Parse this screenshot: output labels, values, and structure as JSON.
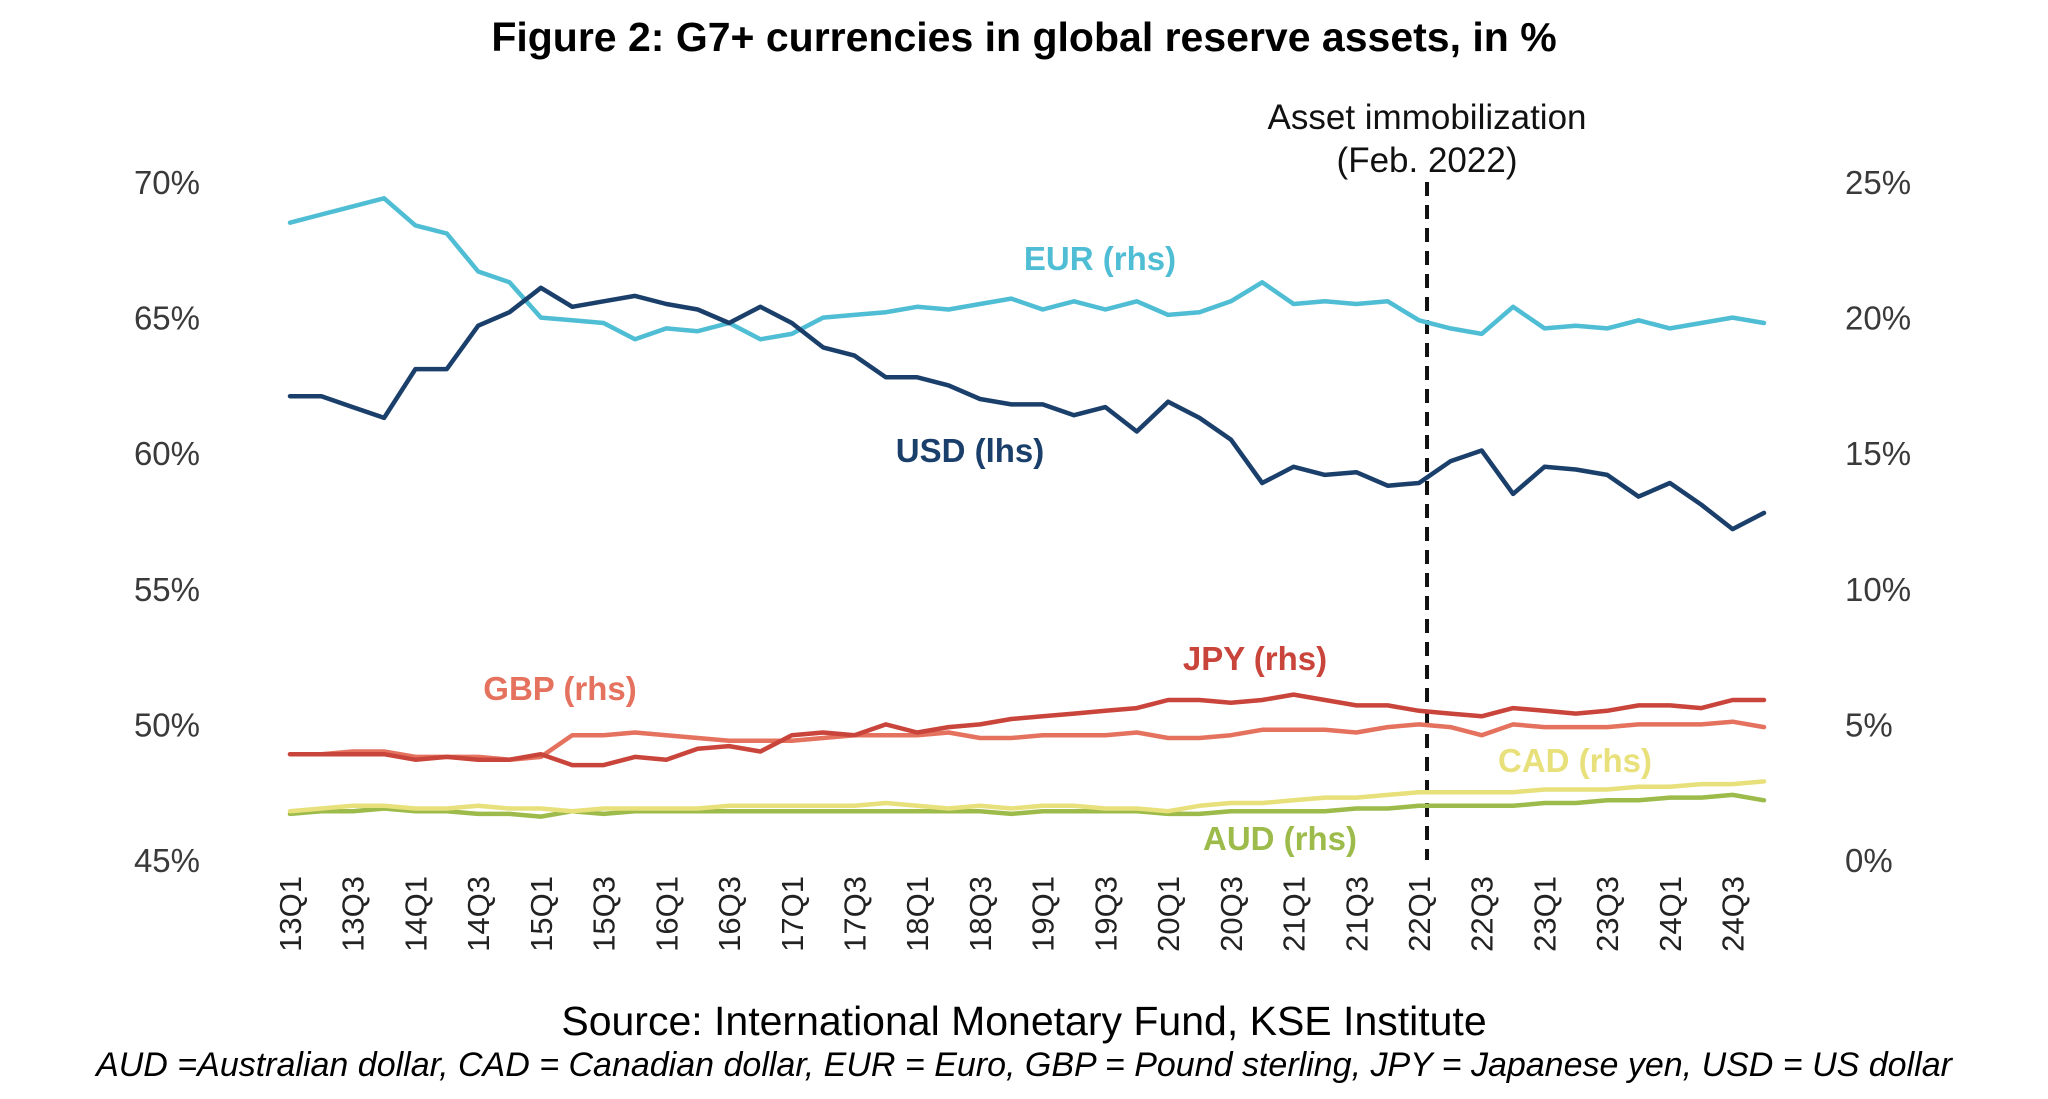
{
  "title": "Figure 2: G7+ currencies in global reserve assets, in %",
  "source": "Source: International Monetary Fund, KSE Institute",
  "note": "AUD =Australian dollar, CAD = Canadian dollar, EUR = Euro, GBP = Pound sterling, JPY = Japanese yen, USD = US dollar",
  "chart_data": {
    "type": "line",
    "x": [
      "13Q1",
      "13Q2",
      "13Q3",
      "13Q4",
      "14Q1",
      "14Q2",
      "14Q3",
      "14Q4",
      "15Q1",
      "15Q2",
      "15Q3",
      "15Q4",
      "16Q1",
      "16Q2",
      "16Q3",
      "16Q4",
      "17Q1",
      "17Q2",
      "17Q3",
      "17Q4",
      "18Q1",
      "18Q2",
      "18Q3",
      "18Q4",
      "19Q1",
      "19Q2",
      "19Q3",
      "19Q4",
      "20Q1",
      "20Q2",
      "20Q3",
      "20Q4",
      "21Q1",
      "21Q2",
      "21Q3",
      "21Q4",
      "22Q1",
      "22Q2",
      "22Q3",
      "22Q4",
      "23Q1",
      "23Q2",
      "23Q3",
      "23Q4",
      "24Q1",
      "24Q2",
      "24Q3",
      "24Q4"
    ],
    "xticks": [
      "13Q1",
      "13Q3",
      "14Q1",
      "14Q3",
      "15Q1",
      "15Q3",
      "16Q1",
      "16Q3",
      "17Q1",
      "17Q3",
      "18Q1",
      "18Q3",
      "19Q1",
      "19Q3",
      "20Q1",
      "20Q3",
      "21Q1",
      "21Q3",
      "22Q1",
      "22Q3",
      "23Q1",
      "23Q3",
      "24Q1",
      "24Q3"
    ],
    "left_axis": {
      "ylim": [
        45,
        70
      ],
      "ticks": [
        "45%",
        "50%",
        "55%",
        "60%",
        "65%",
        "70%"
      ]
    },
    "right_axis": {
      "ylim": [
        0,
        25
      ],
      "ticks": [
        "0%",
        "5%",
        "10%",
        "15%",
        "20%",
        "25%"
      ]
    },
    "series": [
      {
        "name": "USD (lhs)",
        "axis": "left",
        "color": "#1b3f6b",
        "values": [
          62.1,
          62.1,
          61.7,
          61.3,
          63.1,
          63.1,
          64.7,
          65.2,
          66.1,
          65.4,
          65.6,
          65.8,
          65.5,
          65.3,
          64.8,
          65.4,
          64.8,
          63.9,
          63.6,
          62.8,
          62.8,
          62.5,
          62.0,
          61.8,
          61.8,
          61.4,
          61.7,
          60.8,
          61.9,
          61.3,
          60.5,
          58.9,
          59.5,
          59.2,
          59.3,
          58.8,
          58.9,
          59.7,
          60.1,
          58.5,
          59.5,
          59.4,
          59.2,
          58.4,
          58.9,
          58.1,
          57.2,
          57.8
        ]
      },
      {
        "name": "EUR (rhs)",
        "axis": "right",
        "color": "#4fbdd4",
        "values": [
          23.5,
          23.8,
          24.1,
          24.4,
          23.4,
          23.1,
          21.7,
          21.3,
          20.0,
          19.9,
          19.8,
          19.2,
          19.6,
          19.5,
          19.8,
          19.2,
          19.4,
          20.0,
          20.1,
          20.2,
          20.4,
          20.3,
          20.5,
          20.7,
          20.3,
          20.6,
          20.3,
          20.6,
          20.1,
          20.2,
          20.6,
          21.3,
          20.5,
          20.6,
          20.5,
          20.6,
          19.9,
          19.6,
          19.4,
          20.4,
          19.6,
          19.7,
          19.6,
          19.9,
          19.6,
          19.8,
          20.0,
          19.8
        ]
      },
      {
        "name": "JPY (rhs)",
        "axis": "right",
        "color": "#c9453b",
        "values": [
          3.9,
          3.9,
          3.9,
          3.9,
          3.7,
          3.8,
          3.7,
          3.7,
          3.9,
          3.5,
          3.5,
          3.8,
          3.7,
          4.1,
          4.2,
          4.0,
          4.6,
          4.7,
          4.6,
          5.0,
          4.7,
          4.9,
          5.0,
          5.2,
          5.3,
          5.4,
          5.5,
          5.6,
          5.9,
          5.9,
          5.8,
          5.9,
          6.1,
          5.9,
          5.7,
          5.7,
          5.5,
          5.4,
          5.3,
          5.6,
          5.5,
          5.4,
          5.5,
          5.7,
          5.7,
          5.6,
          5.9,
          5.9
        ]
      },
      {
        "name": "GBP (rhs)",
        "axis": "right",
        "color": "#e4725e",
        "values": [
          3.9,
          3.9,
          4.0,
          4.0,
          3.8,
          3.8,
          3.8,
          3.7,
          3.8,
          4.6,
          4.6,
          4.7,
          4.6,
          4.5,
          4.4,
          4.4,
          4.4,
          4.5,
          4.6,
          4.6,
          4.6,
          4.7,
          4.5,
          4.5,
          4.6,
          4.6,
          4.6,
          4.7,
          4.5,
          4.5,
          4.6,
          4.8,
          4.8,
          4.8,
          4.7,
          4.9,
          5.0,
          4.9,
          4.6,
          5.0,
          4.9,
          4.9,
          4.9,
          5.0,
          5.0,
          5.0,
          5.1,
          4.9
        ]
      },
      {
        "name": "CAD (rhs)",
        "axis": "right",
        "color": "#e8e07a",
        "values": [
          1.8,
          1.9,
          2.0,
          2.0,
          1.9,
          1.9,
          2.0,
          1.9,
          1.9,
          1.8,
          1.9,
          1.9,
          1.9,
          1.9,
          2.0,
          2.0,
          2.0,
          2.0,
          2.0,
          2.1,
          2.0,
          1.9,
          2.0,
          1.9,
          2.0,
          2.0,
          1.9,
          1.9,
          1.8,
          2.0,
          2.1,
          2.1,
          2.2,
          2.3,
          2.3,
          2.4,
          2.5,
          2.5,
          2.5,
          2.5,
          2.6,
          2.6,
          2.6,
          2.7,
          2.7,
          2.8,
          2.8,
          2.9
        ]
      },
      {
        "name": "AUD (rhs)",
        "axis": "right",
        "color": "#9cbb4a",
        "values": [
          1.7,
          1.8,
          1.8,
          1.9,
          1.8,
          1.8,
          1.7,
          1.7,
          1.6,
          1.8,
          1.7,
          1.8,
          1.8,
          1.8,
          1.8,
          1.8,
          1.8,
          1.8,
          1.8,
          1.8,
          1.8,
          1.8,
          1.8,
          1.7,
          1.8,
          1.8,
          1.8,
          1.8,
          1.7,
          1.7,
          1.8,
          1.8,
          1.8,
          1.8,
          1.9,
          1.9,
          2.0,
          2.0,
          2.0,
          2.0,
          2.1,
          2.1,
          2.2,
          2.2,
          2.3,
          2.3,
          2.4,
          2.2
        ]
      }
    ],
    "series_labels": [
      "EUR (rhs)",
      "USD (lhs)",
      "JPY (rhs)",
      "GBP (rhs)",
      "CAD (rhs)",
      "AUD (rhs)"
    ],
    "annotation": {
      "line1": "Asset immobilization",
      "line2": "(Feb. 2022)",
      "at": "22Q1",
      "style": "dashed"
    },
    "grid": false,
    "legend": "none"
  }
}
